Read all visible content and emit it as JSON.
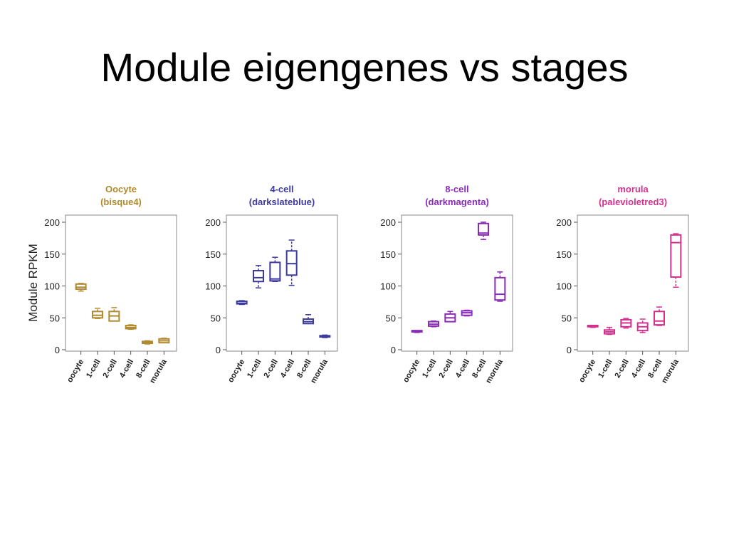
{
  "slide": {
    "title": "Module eigengenes vs stages"
  },
  "chart_data": {
    "type": "box",
    "ylabel": "Module RPKM",
    "ylim": [
      0,
      200
    ],
    "yticks": [
      0,
      50,
      100,
      150,
      200
    ],
    "categories": [
      "oocyte",
      "1-cell",
      "2-cell",
      "4-cell",
      "8-cell",
      "morula"
    ],
    "panels": [
      {
        "title_line1": "Oocyte",
        "title_line2": "(bisque4)",
        "color": "#b08a2e",
        "boxes": [
          {
            "category": "oocyte",
            "min": 92,
            "q1": 95,
            "median": 98,
            "q3": 103,
            "max": 104
          },
          {
            "category": "1-cell",
            "min": 49,
            "q1": 50,
            "median": 54,
            "q3": 60,
            "max": 65
          },
          {
            "category": "2-cell",
            "min": 45,
            "q1": 45,
            "median": 53,
            "q3": 60,
            "max": 66
          },
          {
            "category": "4-cell",
            "min": 32,
            "q1": 33,
            "median": 35,
            "q3": 38,
            "max": 39
          },
          {
            "category": "8-cell",
            "min": 9,
            "q1": 10,
            "median": 12,
            "q3": 13,
            "max": 14
          },
          {
            "category": "morula",
            "min": 11,
            "q1": 11,
            "median": 14,
            "q3": 17,
            "max": 18
          }
        ]
      },
      {
        "title_line1": "4-cell",
        "title_line2": "(darkslateblue)",
        "color": "#3d3a9e",
        "boxes": [
          {
            "category": "oocyte",
            "min": 71,
            "q1": 72,
            "median": 73,
            "q3": 76,
            "max": 77
          },
          {
            "category": "1-cell",
            "min": 97,
            "q1": 107,
            "median": 113,
            "q3": 124,
            "max": 132
          },
          {
            "category": "2-cell",
            "min": 107,
            "q1": 108,
            "median": 111,
            "q3": 137,
            "max": 145
          },
          {
            "category": "4-cell",
            "min": 101,
            "q1": 117,
            "median": 135,
            "q3": 155,
            "max": 172
          },
          {
            "category": "8-cell",
            "min": 41,
            "q1": 41,
            "median": 44,
            "q3": 48,
            "max": 55
          },
          {
            "category": "morula",
            "min": 19,
            "q1": 20,
            "median": 21,
            "q3": 22,
            "max": 23
          }
        ]
      },
      {
        "title_line1": "8-cell",
        "title_line2": "(darkmagenta)",
        "color": "#8a2bb8",
        "boxes": [
          {
            "category": "oocyte",
            "min": 27,
            "q1": 28,
            "median": 29,
            "q3": 30,
            "max": 30
          },
          {
            "category": "1-cell",
            "min": 36,
            "q1": 37,
            "median": 40,
            "q3": 44,
            "max": 45
          },
          {
            "category": "2-cell",
            "min": 44,
            "q1": 44,
            "median": 50,
            "q3": 56,
            "max": 60
          },
          {
            "category": "4-cell",
            "min": 53,
            "q1": 54,
            "median": 58,
            "q3": 61,
            "max": 62
          },
          {
            "category": "8-cell",
            "min": 173,
            "q1": 180,
            "median": 183,
            "q3": 198,
            "max": 200
          },
          {
            "category": "morula",
            "min": 76,
            "q1": 78,
            "median": 87,
            "q3": 113,
            "max": 122
          }
        ]
      },
      {
        "title_line1": "morula",
        "title_line2": "(palevioletred3)",
        "color": "#d6308f",
        "boxes": [
          {
            "category": "oocyte",
            "min": 35,
            "q1": 36,
            "median": 37,
            "q3": 38,
            "max": 38
          },
          {
            "category": "1-cell",
            "min": 24,
            "q1": 25,
            "median": 28,
            "q3": 31,
            "max": 35
          },
          {
            "category": "2-cell",
            "min": 34,
            "q1": 36,
            "median": 42,
            "q3": 47,
            "max": 49
          },
          {
            "category": "4-cell",
            "min": 27,
            "q1": 30,
            "median": 36,
            "q3": 42,
            "max": 48
          },
          {
            "category": "8-cell",
            "min": 38,
            "q1": 39,
            "median": 45,
            "q3": 60,
            "max": 67
          },
          {
            "category": "morula",
            "min": 98,
            "q1": 114,
            "median": 168,
            "q3": 180,
            "max": 182
          }
        ]
      }
    ]
  }
}
